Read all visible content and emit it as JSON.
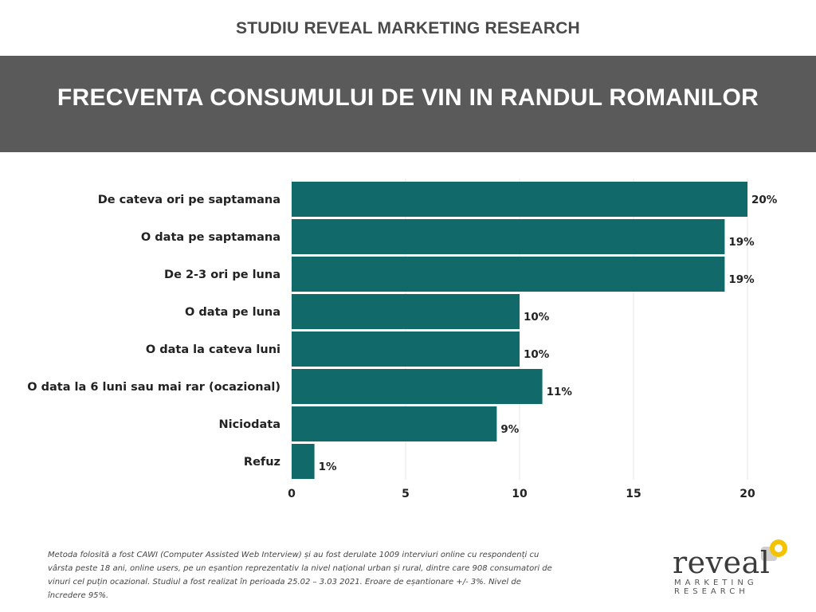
{
  "header": {
    "study": "STUDIU REVEAL MARKETING RESEARCH",
    "title": "FRECVENTA CONSUMULUI DE VIN IN RANDUL ROMANILOR"
  },
  "chart_data": {
    "type": "bar",
    "orientation": "horizontal",
    "categories": [
      "De cateva ori pe saptamana",
      "O data pe saptamana",
      "De 2-3 ori pe luna",
      "O data pe luna",
      "O data la cateva luni",
      "O data la 6 luni sau mai rar (ocazional)",
      "Niciodata",
      "Refuz"
    ],
    "values": [
      20,
      19,
      19,
      10,
      10,
      11,
      9,
      1
    ],
    "data_labels": [
      "20%",
      "19%",
      "19%",
      "10%",
      "10%",
      "11%",
      "9%",
      "1%"
    ],
    "xlim": [
      0,
      20
    ],
    "xticks": [
      0,
      5,
      10,
      15,
      20
    ],
    "grid": "vertical",
    "bar_color": "#12696a",
    "legend": "none"
  },
  "footnote": "Metoda folosită a fost CAWI (Computer Assisted Web Interview) și au fost derulate 1009 interviuri online cu respondenți cu vârsta peste 18 ani, online users, pe un eșantion reprezentativ la nivel național urban și rural, dintre care 908 consumatori de vinuri cel puțin ocazional. Studiul a fost realizat în perioada 25.02 – 3.03 2021. Eroare de eșantionare +/- 3%. Nivel de încredere 95%.",
  "logo": {
    "word": "reveal",
    "line1": "MARKETING",
    "line2": "RESEARCH",
    "accent_color": "#f3c300",
    "mark_color": "#cfcfcf"
  }
}
